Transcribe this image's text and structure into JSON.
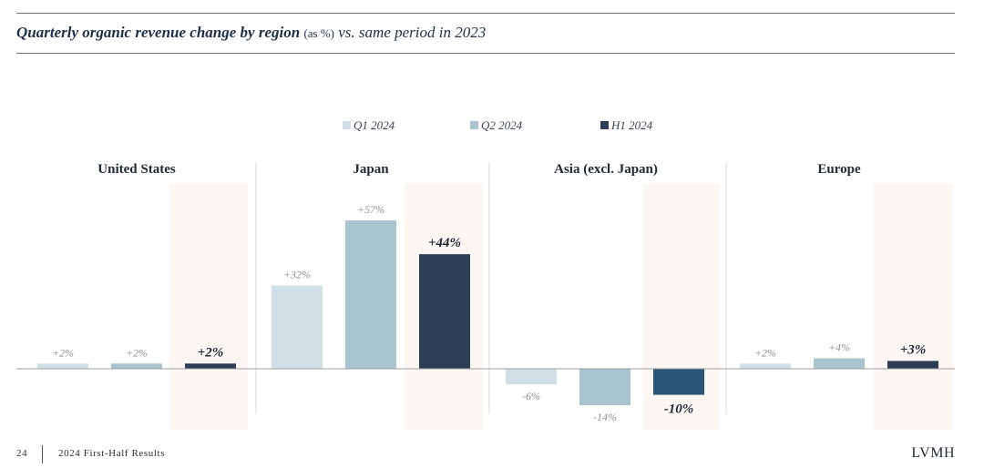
{
  "header": {
    "title_main": "Quarterly organic revenue change by region",
    "title_unit": "(as %)",
    "title_rest": "vs. same period in 2023"
  },
  "footer": {
    "page_number": "24",
    "caption": "2024 First-Half Results",
    "brand": "LVMH"
  },
  "colors": {
    "q1": "#d1e0e6",
    "q2": "#a9c3cf",
    "h1_us": "#2c3e56",
    "h1_japan": "#2c3e56",
    "h1_asia": "#2b5576",
    "h1_europe": "#2c3e56",
    "highlight": "#fbf6f2"
  },
  "chart_data": {
    "type": "bar",
    "categories": [
      "United States",
      "Japan",
      "Asia (excl. Japan)",
      "Europe"
    ],
    "series": [
      {
        "name": "Q1 2024",
        "values": [
          2,
          32,
          -6,
          2
        ],
        "labels": [
          "+2%",
          "+32%",
          "-6%",
          "+2%"
        ]
      },
      {
        "name": "Q2 2024",
        "values": [
          2,
          57,
          -14,
          4
        ],
        "labels": [
          "+2%",
          "+57%",
          "-14%",
          "+4%"
        ]
      },
      {
        "name": "H1 2024",
        "values": [
          2,
          44,
          -10,
          3
        ],
        "labels": [
          "+2%",
          "+44%",
          "-10%",
          "+3%"
        ]
      }
    ],
    "legend_position": "top-center",
    "grid": false,
    "ylim": [
      -20,
      60
    ]
  }
}
